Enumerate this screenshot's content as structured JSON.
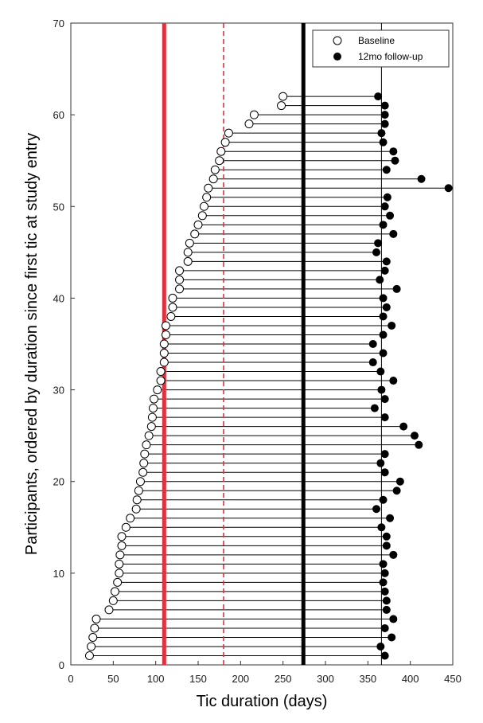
{
  "chart_data": {
    "type": "scatter",
    "xlabel": "Tic duration (days)",
    "ylabel": "Participants, ordered by duration since first tic at study entry",
    "xlim": [
      0,
      450
    ],
    "ylim": [
      0,
      70
    ],
    "xticks": [
      0,
      50,
      100,
      150,
      200,
      250,
      300,
      350,
      400,
      450
    ],
    "yticks": [
      0,
      10,
      20,
      30,
      40,
      50,
      60,
      70
    ],
    "grid": false,
    "legend_position": "top-right",
    "series": [
      {
        "name": "Baseline",
        "marker": "open-circle",
        "points": [
          [
            22,
            1
          ],
          [
            24,
            2
          ],
          [
            26,
            3
          ],
          [
            28,
            4
          ],
          [
            30,
            5
          ],
          [
            45,
            6
          ],
          [
            50,
            7
          ],
          [
            52,
            8
          ],
          [
            55,
            9
          ],
          [
            57,
            10
          ],
          [
            57,
            11
          ],
          [
            58,
            12
          ],
          [
            60,
            13
          ],
          [
            60,
            14
          ],
          [
            65,
            15
          ],
          [
            70,
            16
          ],
          [
            77,
            17
          ],
          [
            78,
            18
          ],
          [
            80,
            19
          ],
          [
            82,
            20
          ],
          [
            85,
            21
          ],
          [
            86,
            22
          ],
          [
            87,
            23
          ],
          [
            89,
            24
          ],
          [
            92,
            25
          ],
          [
            95,
            26
          ],
          [
            96,
            27
          ],
          [
            97,
            28
          ],
          [
            98,
            29
          ],
          [
            102,
            30
          ],
          [
            106,
            31
          ],
          [
            106,
            32
          ],
          [
            110,
            33
          ],
          [
            110,
            34
          ],
          [
            110,
            35
          ],
          [
            112,
            36
          ],
          [
            112,
            37
          ],
          [
            118,
            38
          ],
          [
            120,
            39
          ],
          [
            120,
            40
          ],
          [
            128,
            41
          ],
          [
            128,
            42
          ],
          [
            128,
            43
          ],
          [
            138,
            44
          ],
          [
            138,
            45
          ],
          [
            140,
            46
          ],
          [
            146,
            47
          ],
          [
            150,
            48
          ],
          [
            155,
            49
          ],
          [
            157,
            50
          ],
          [
            160,
            51
          ],
          [
            162,
            52
          ],
          [
            168,
            53
          ],
          [
            170,
            54
          ],
          [
            175,
            55
          ],
          [
            177,
            56
          ],
          [
            182,
            57
          ],
          [
            186,
            58
          ],
          [
            210,
            59
          ],
          [
            216,
            60
          ],
          [
            248,
            61
          ],
          [
            250,
            62
          ]
        ]
      },
      {
        "name": "12mo follow-up",
        "marker": "filled-circle",
        "points": [
          [
            370,
            1
          ],
          [
            365,
            2
          ],
          [
            378,
            3
          ],
          [
            370,
            4
          ],
          [
            380,
            5
          ],
          [
            372,
            6
          ],
          [
            372,
            7
          ],
          [
            370,
            8
          ],
          [
            368,
            9
          ],
          [
            370,
            10
          ],
          [
            368,
            11
          ],
          [
            380,
            12
          ],
          [
            372,
            13
          ],
          [
            372,
            14
          ],
          [
            366,
            15
          ],
          [
            376,
            16
          ],
          [
            360,
            17
          ],
          [
            368,
            18
          ],
          [
            384,
            19
          ],
          [
            388,
            20
          ],
          [
            370,
            21
          ],
          [
            365,
            22
          ],
          [
            370,
            23
          ],
          [
            410,
            24
          ],
          [
            405,
            25
          ],
          [
            392,
            26
          ],
          [
            370,
            27
          ],
          [
            358,
            28
          ],
          [
            370,
            29
          ],
          [
            366,
            30
          ],
          [
            380,
            31
          ],
          [
            365,
            32
          ],
          [
            356,
            33
          ],
          [
            368,
            34
          ],
          [
            356,
            35
          ],
          [
            368,
            36
          ],
          [
            378,
            37
          ],
          [
            368,
            38
          ],
          [
            372,
            39
          ],
          [
            368,
            40
          ],
          [
            384,
            41
          ],
          [
            364,
            42
          ],
          [
            370,
            43
          ],
          [
            372,
            44
          ],
          [
            360,
            45
          ],
          [
            362,
            46
          ],
          [
            380,
            47
          ],
          [
            368,
            48
          ],
          [
            376,
            49
          ],
          [
            370,
            50
          ],
          [
            373,
            51
          ],
          [
            445,
            52
          ],
          [
            413,
            53
          ],
          [
            372,
            54
          ],
          [
            382,
            55
          ],
          [
            380,
            56
          ],
          [
            368,
            57
          ],
          [
            366,
            58
          ],
          [
            370,
            59
          ],
          [
            370,
            60
          ],
          [
            370,
            61
          ],
          [
            362,
            62
          ]
        ]
      }
    ],
    "reference_lines": [
      {
        "x": 110,
        "color": "#e0313f",
        "style": "solid-thick"
      },
      {
        "x": 180,
        "color": "#e0313f",
        "style": "dashed"
      },
      {
        "x": 274,
        "color": "#000000",
        "style": "solid-thick"
      },
      {
        "x": 366,
        "color": "#000000",
        "style": "solid-thin"
      }
    ]
  }
}
